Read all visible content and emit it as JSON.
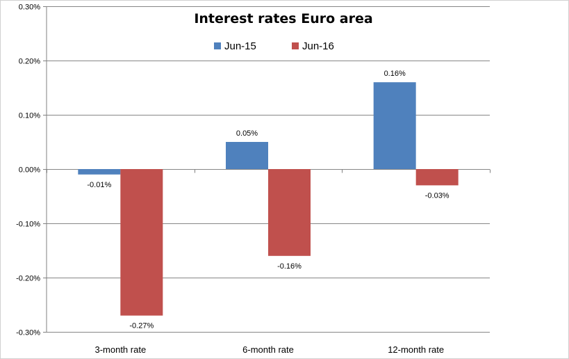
{
  "chart_data": {
    "type": "bar",
    "title": "Interest rates Euro area",
    "categories": [
      "3-month rate",
      "6-month rate",
      "12-month rate"
    ],
    "series": [
      {
        "name": "Jun-15",
        "color": "#4f81bd",
        "values": [
          -0.01,
          0.05,
          0.16
        ],
        "labels": [
          "-0.01%",
          "0.05%",
          "0.16%"
        ]
      },
      {
        "name": "Jun-16",
        "color": "#c0504d",
        "values": [
          -0.27,
          -0.16,
          -0.03
        ],
        "labels": [
          "-0.27%",
          "-0.16%",
          "-0.03%"
        ]
      }
    ],
    "ylim": [
      -0.3,
      0.3
    ],
    "yticks": [
      0.3,
      0.2,
      0.1,
      0.0,
      -0.1,
      -0.2,
      -0.3
    ],
    "ytick_labels": [
      "0.30%",
      "0.20%",
      "0.10%",
      "0.00%",
      "-0.10%",
      "-0.20%",
      "-0.30%"
    ],
    "grid": true,
    "legend": "top-center"
  }
}
